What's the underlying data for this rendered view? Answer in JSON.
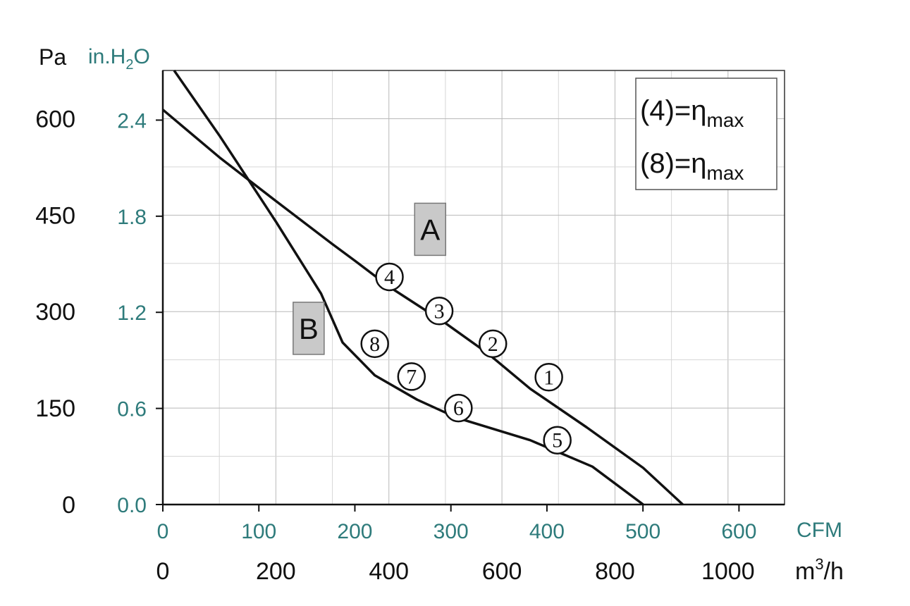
{
  "chart_data": {
    "type": "line",
    "x_unit_primary": "m3/h",
    "x_unit_secondary": "CFM",
    "y_unit_primary": "Pa",
    "y_unit_secondary": "in.H2O",
    "axis_labels": {
      "y_primary": "Pa",
      "y_secondary_prefix": "in.H",
      "y_secondary_sub": "2",
      "y_secondary_suffix": "O",
      "x_secondary": "CFM",
      "x_primary_prefix": "m",
      "x_primary_sup": "3",
      "x_primary_suffix": "/h"
    },
    "xlim": [
      0,
      1100
    ],
    "ylim": [
      0,
      675
    ],
    "grid": true,
    "y_ticks_pa": [
      "0",
      "150",
      "300",
      "450",
      "600"
    ],
    "y_tick_values_pa": [
      0,
      150,
      300,
      450,
      600
    ],
    "y_ticks_inh2o": [
      "0.0",
      "0.6",
      "1.2",
      "1.8",
      "2.4"
    ],
    "y_tick_values_inh2o": [
      0,
      0.6,
      1.2,
      1.8,
      2.4
    ],
    "x_ticks_m3h": [
      "0",
      "200",
      "400",
      "600",
      "800",
      "1000"
    ],
    "x_tick_values_m3h": [
      0,
      200,
      400,
      600,
      800,
      1000
    ],
    "x_ticks_cfm": [
      "0",
      "100",
      "200",
      "300",
      "400",
      "500",
      "600"
    ],
    "x_tick_values_cfm": [
      0,
      100,
      200,
      300,
      400,
      500,
      600
    ],
    "series": [
      {
        "name": "A",
        "color": "#111111",
        "points": [
          [
            0,
            614
          ],
          [
            100,
            540
          ],
          [
            200,
            472
          ],
          [
            300,
            405
          ],
          [
            340,
            379
          ],
          [
            400,
            339
          ],
          [
            500,
            282
          ],
          [
            575,
            235
          ],
          [
            650,
            180
          ],
          [
            750,
            120
          ],
          [
            850,
            57
          ],
          [
            920,
            0
          ]
        ]
      },
      {
        "name": "B",
        "color": "#111111",
        "points": [
          [
            20,
            675
          ],
          [
            100,
            574
          ],
          [
            200,
            440
          ],
          [
            280,
            328
          ],
          [
            318,
            252
          ],
          [
            375,
            201
          ],
          [
            450,
            163
          ],
          [
            520,
            135
          ],
          [
            650,
            100
          ],
          [
            760,
            59
          ],
          [
            850,
            0
          ]
        ]
      }
    ],
    "markers": [
      {
        "label": "1",
        "series": "A",
        "x": 683,
        "y": 198
      },
      {
        "label": "2",
        "series": "A",
        "x": 584,
        "y": 250
      },
      {
        "label": "3",
        "series": "A",
        "x": 489,
        "y": 301
      },
      {
        "label": "4",
        "series": "A",
        "x": 401,
        "y": 354
      },
      {
        "label": "5",
        "series": "B",
        "x": 698,
        "y": 100
      },
      {
        "label": "6",
        "series": "B",
        "x": 523,
        "y": 150
      },
      {
        "label": "7",
        "series": "B",
        "x": 440,
        "y": 199
      },
      {
        "label": "8",
        "series": "B",
        "x": 375,
        "y": 250
      }
    ],
    "curve_labels": [
      {
        "text": "A",
        "x": 473,
        "y": 428
      },
      {
        "text": "B",
        "x": 258,
        "y": 274
      }
    ],
    "legend": {
      "placement": "top-right",
      "entries": [
        {
          "prefix": "(4)=η",
          "sub": "max"
        },
        {
          "prefix": "(8)=η",
          "sub": "max"
        }
      ]
    }
  }
}
